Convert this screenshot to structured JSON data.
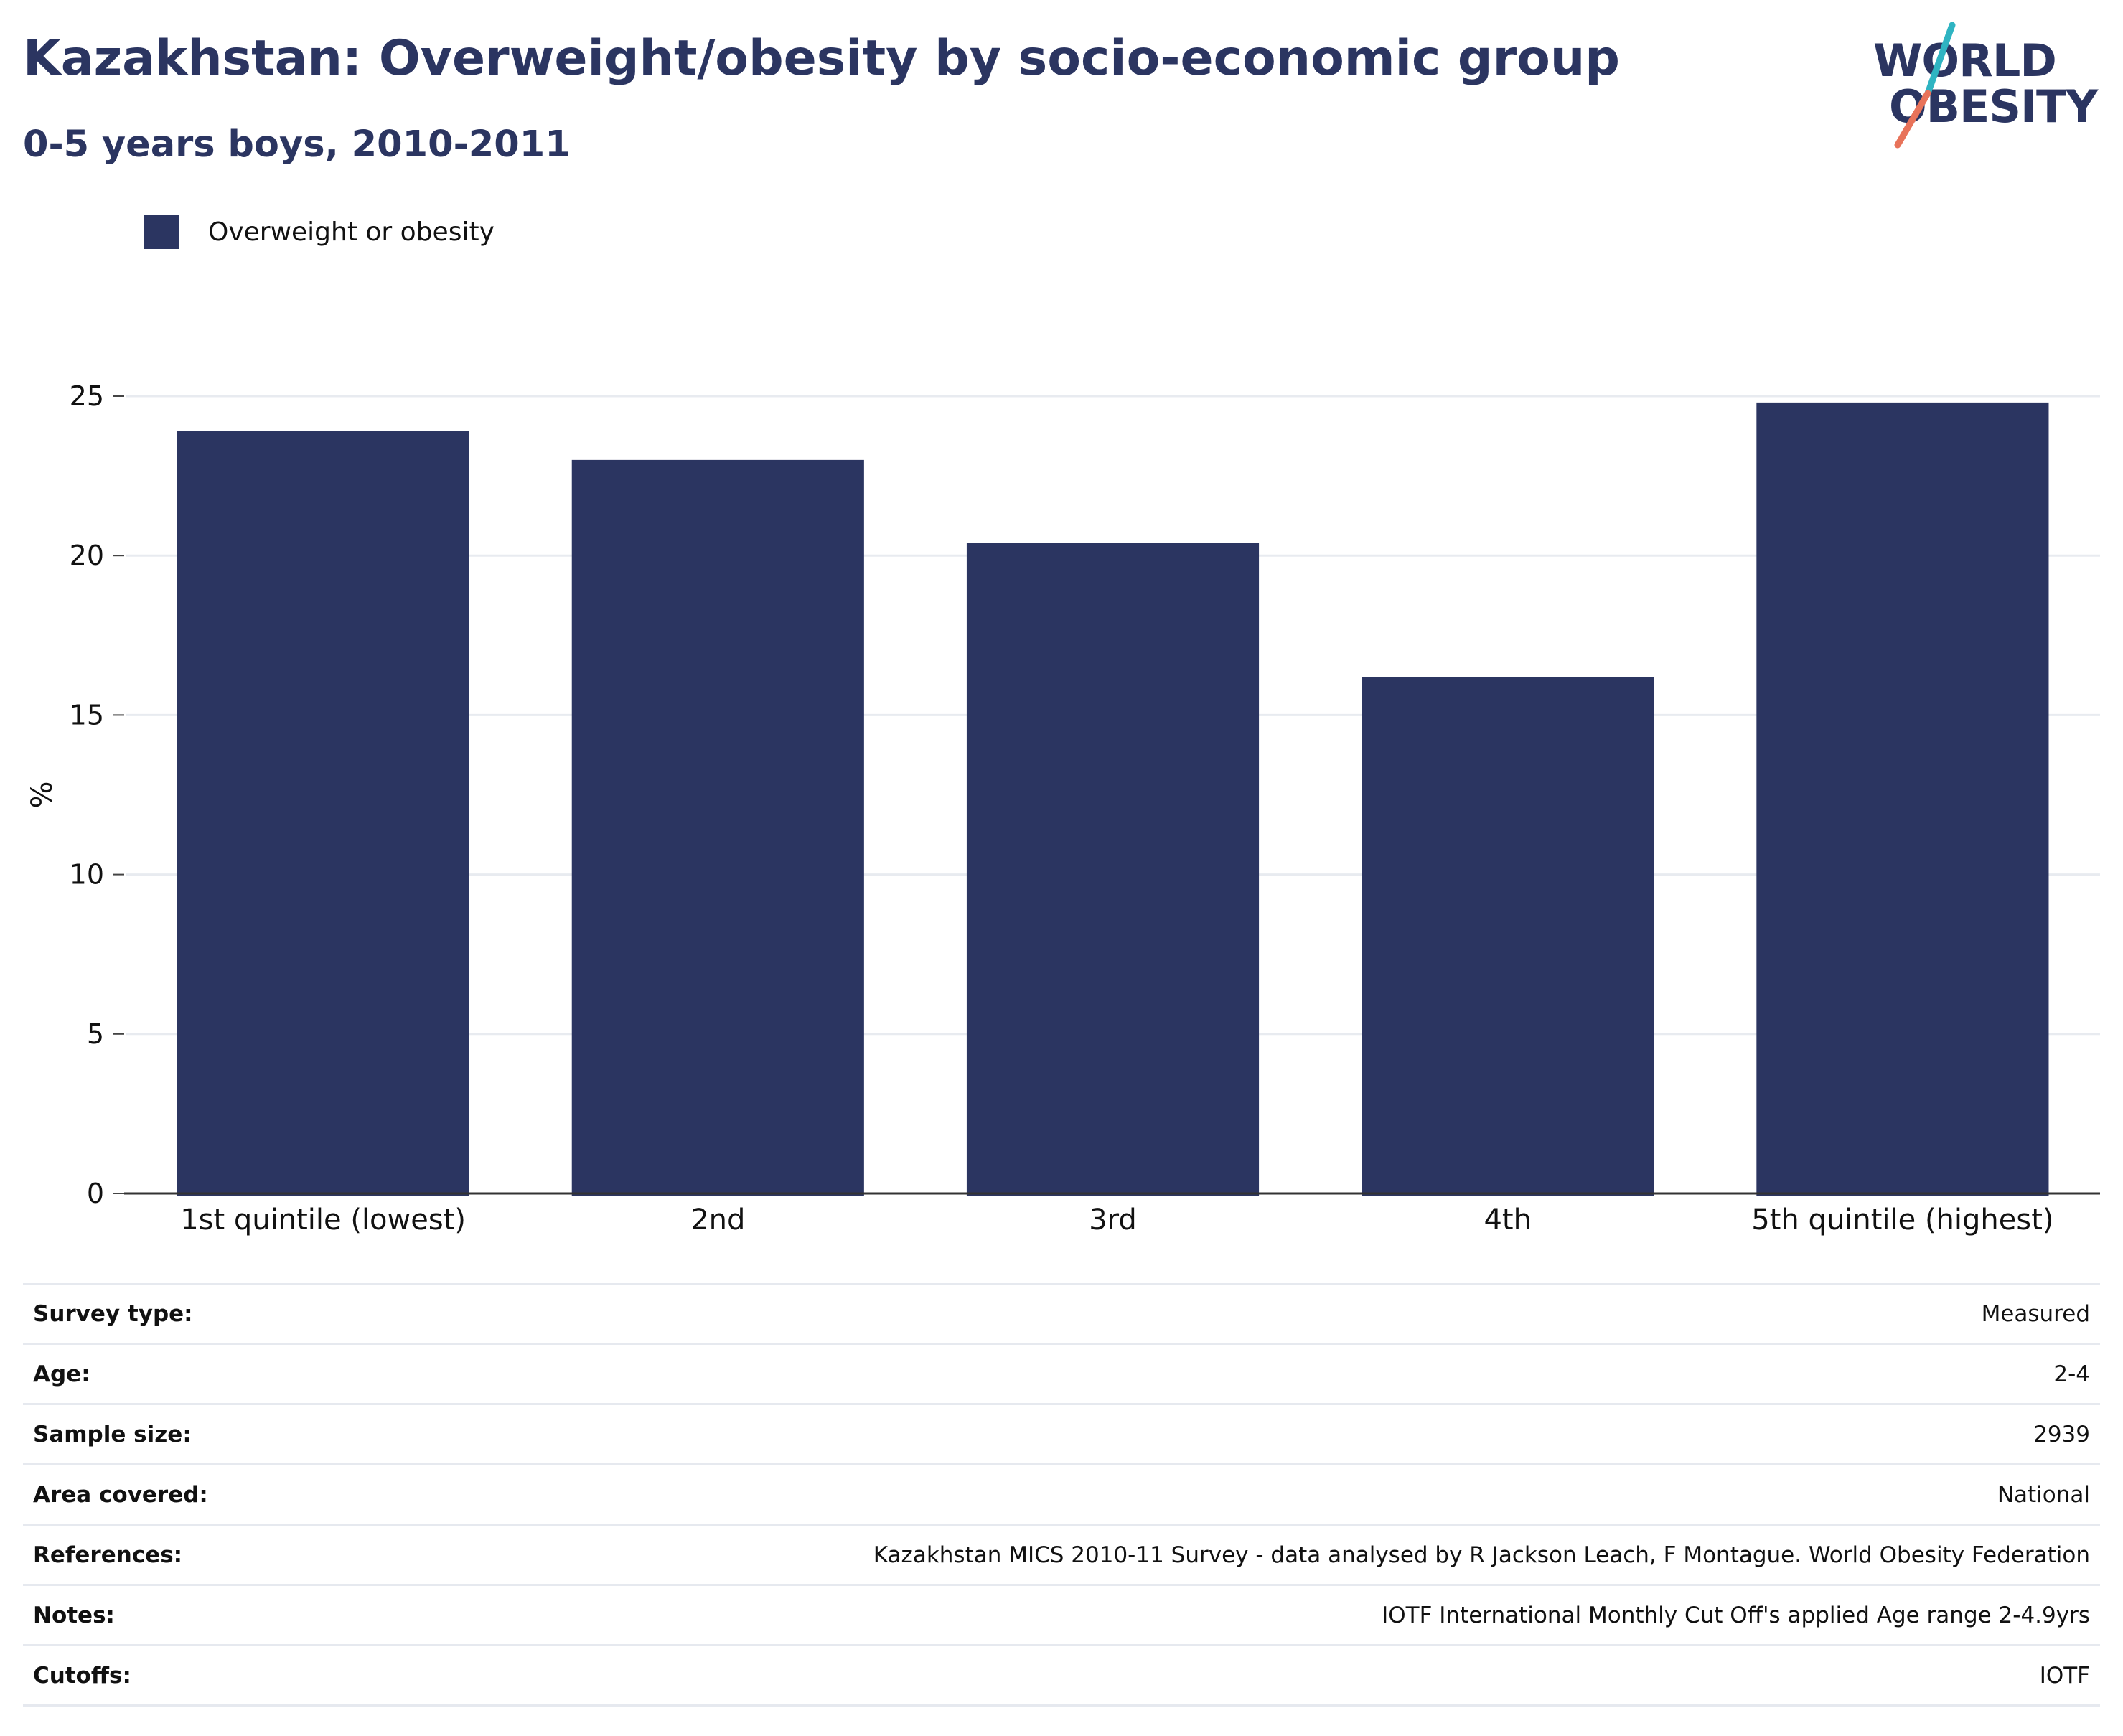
{
  "header": {
    "title": "Kazakhstan: Overweight/obesity by socio-economic group",
    "subtitle": "0-5 years boys, 2010-2011"
  },
  "logo": {
    "line1": "WORLD",
    "line2": "OBESITY",
    "accent_colors": [
      "#2fb4c2",
      "#e8735a"
    ]
  },
  "chart_data": {
    "type": "bar",
    "categories": [
      "1st quintile (lowest)",
      "2nd",
      "3rd",
      "4th",
      "5th quintile (highest)"
    ],
    "series": [
      {
        "name": "Overweight or obesity",
        "values": [
          23.9,
          23.0,
          20.4,
          16.2,
          24.8
        ],
        "color": "#2b3561"
      }
    ],
    "ylabel": "%",
    "ylim": [
      0,
      25
    ],
    "yticks": [
      0,
      5,
      10,
      15,
      20,
      25
    ],
    "grid": true,
    "legend_position": "top-left"
  },
  "details": [
    {
      "label": "Survey type:",
      "value": "Measured"
    },
    {
      "label": "Age:",
      "value": "2-4"
    },
    {
      "label": "Sample size:",
      "value": "2939"
    },
    {
      "label": "Area covered:",
      "value": "National"
    },
    {
      "label": "References:",
      "value": "Kazakhstan MICS 2010-11 Survey - data analysed by R Jackson Leach, F Montague. World Obesity Federation"
    },
    {
      "label": "Notes:",
      "value": "IOTF International Monthly Cut Off's applied Age range 2-4.9yrs"
    },
    {
      "label": "Cutoffs:",
      "value": "IOTF"
    }
  ]
}
